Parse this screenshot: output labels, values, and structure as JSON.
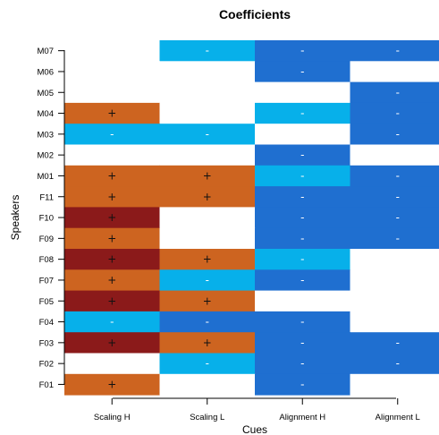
{
  "chart_data": {
    "type": "heatmap",
    "title": "Coefficients",
    "xlabel": "Cues",
    "ylabel": "Speakers",
    "x_categories": [
      "Scaling H",
      "Scaling L",
      "Alignment H",
      "Alignment L"
    ],
    "y_categories": [
      "M07",
      "M06",
      "M05",
      "M04",
      "M03",
      "M02",
      "M01",
      "F11",
      "F10",
      "F09",
      "F08",
      "F07",
      "F05",
      "F04",
      "F03",
      "F02",
      "F01"
    ],
    "grid": false,
    "cell_colors": {
      "positive_large": "#8b1a1a",
      "positive": "#cd6420",
      "negative": "#07b0ea",
      "negative_large": "#1f6fd0",
      "none": "#ffffff"
    },
    "cells": [
      [
        "",
        "-",
        "-",
        "-"
      ],
      [
        "",
        "",
        "-",
        ""
      ],
      [
        "",
        "",
        "",
        "-"
      ],
      [
        "+",
        "",
        "-",
        "-"
      ],
      [
        "-",
        "-",
        "",
        "-"
      ],
      [
        "",
        "",
        "-",
        ""
      ],
      [
        "+",
        "+",
        "-",
        "-"
      ],
      [
        "+",
        "+",
        "-",
        "-"
      ],
      [
        "+",
        "",
        "-",
        "-"
      ],
      [
        "+",
        "",
        "-",
        "-"
      ],
      [
        "+",
        "+",
        "-",
        ""
      ],
      [
        "+",
        "-",
        "-",
        ""
      ],
      [
        "+",
        "+",
        "",
        ""
      ],
      [
        "-",
        "-",
        "-",
        ""
      ],
      [
        "+",
        "+",
        "-",
        "-"
      ],
      [
        "",
        "-",
        "-",
        "-"
      ],
      [
        "+",
        "",
        "-",
        ""
      ]
    ],
    "levels": [
      [
        "none",
        "negative",
        "negative_large",
        "negative_large"
      ],
      [
        "none",
        "none",
        "negative_large",
        "none"
      ],
      [
        "none",
        "none",
        "none",
        "negative_large"
      ],
      [
        "positive",
        "none",
        "negative",
        "negative_large"
      ],
      [
        "negative",
        "negative",
        "none",
        "negative_large"
      ],
      [
        "none",
        "none",
        "negative_large",
        "none"
      ],
      [
        "positive",
        "positive",
        "negative",
        "negative_large"
      ],
      [
        "positive",
        "positive",
        "negative_large",
        "negative_large"
      ],
      [
        "positive_large",
        "none",
        "negative_large",
        "negative_large"
      ],
      [
        "positive",
        "none",
        "negative_large",
        "negative_large"
      ],
      [
        "positive_large",
        "positive",
        "negative",
        "none"
      ],
      [
        "positive",
        "negative",
        "negative_large",
        "none"
      ],
      [
        "positive_large",
        "positive",
        "none",
        "none"
      ],
      [
        "negative",
        "negative_large",
        "negative_large",
        "none"
      ],
      [
        "positive_large",
        "positive",
        "negative_large",
        "negative_large"
      ],
      [
        "none",
        "negative",
        "negative_large",
        "negative_large"
      ],
      [
        "positive",
        "none",
        "negative_large",
        "none"
      ]
    ]
  }
}
